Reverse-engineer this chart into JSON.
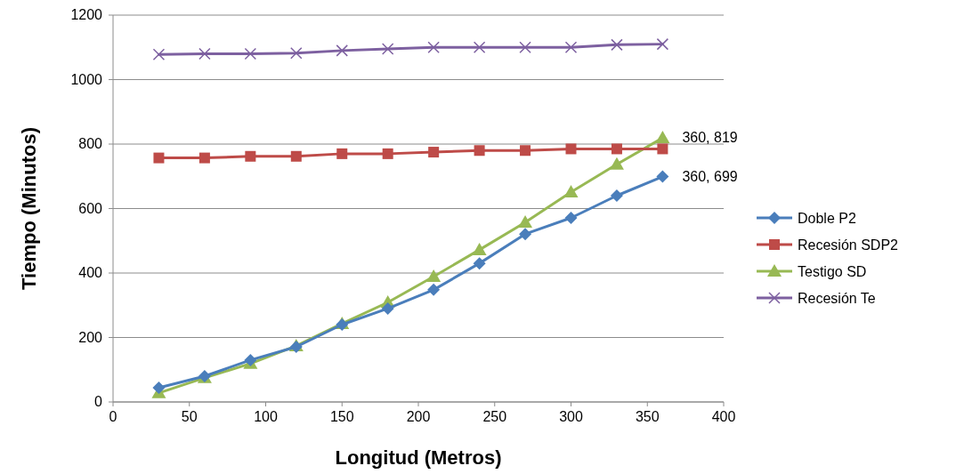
{
  "chart_data": {
    "type": "line",
    "xlabel": "Longitud (Metros)",
    "ylabel": "Tiempo (Minutos)",
    "x": [
      30,
      60,
      90,
      120,
      150,
      180,
      210,
      240,
      270,
      300,
      330,
      360
    ],
    "series": [
      {
        "name": "Doble P2",
        "color": "#4a7ebb",
        "marker": "diamond",
        "values": [
          44,
          80,
          130,
          171,
          240,
          290,
          348,
          430,
          521,
          571,
          640,
          699
        ]
      },
      {
        "name": "Recesión SDP2",
        "color": "#be4b48",
        "marker": "square",
        "values": [
          757,
          757,
          762,
          762,
          770,
          770,
          775,
          780,
          780,
          785,
          785,
          785
        ]
      },
      {
        "name": "Testigo SD",
        "color": "#98b954",
        "marker": "triangle",
        "values": [
          28,
          75,
          119,
          174,
          243,
          309,
          389,
          472,
          557,
          651,
          737,
          819
        ]
      },
      {
        "name": "Recesión Te",
        "color": "#7d60a0",
        "marker": "cross",
        "values": [
          1078,
          1080,
          1080,
          1082,
          1090,
          1095,
          1100,
          1100,
          1100,
          1100,
          1108,
          1110
        ]
      }
    ],
    "xlim": [
      0,
      400
    ],
    "xticks": [
      0,
      50,
      100,
      150,
      200,
      250,
      300,
      350,
      400
    ],
    "ylim": [
      0,
      1200
    ],
    "yticks": [
      0,
      200,
      400,
      600,
      800,
      1000,
      1200
    ],
    "grid": "y",
    "legend": "right",
    "annotations": [
      {
        "text": "360, 819",
        "x": 360,
        "y": 819
      },
      {
        "text": "360, 699",
        "x": 360,
        "y": 699
      }
    ]
  }
}
